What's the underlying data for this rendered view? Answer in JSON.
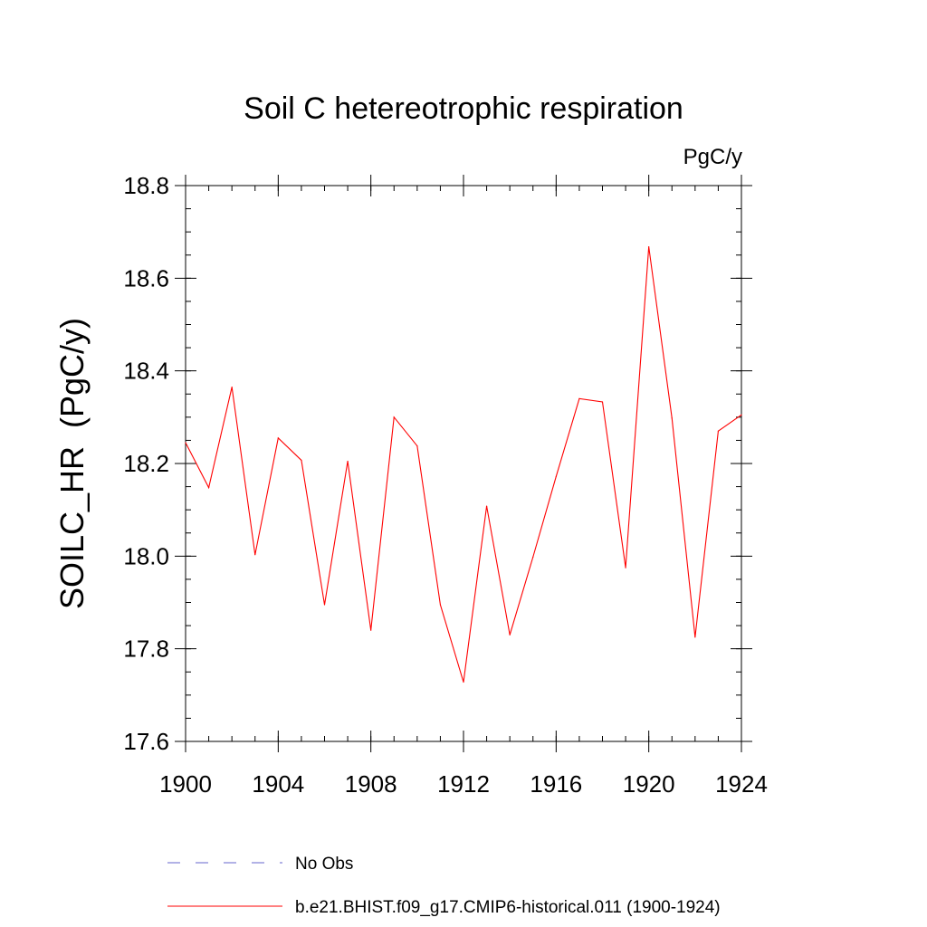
{
  "chart_data": {
    "type": "line",
    "title": "Soil C hetereotrophic respiration",
    "units_label": "PgC/y",
    "ylabel": "SOILC_HR  (PgC/y)",
    "xlabel": "",
    "xlim": [
      1900,
      1924
    ],
    "ylim": [
      17.6,
      18.8
    ],
    "x_ticks": [
      1900,
      1904,
      1908,
      1912,
      1916,
      1920,
      1924
    ],
    "y_ticks": [
      17.6,
      17.8,
      18.0,
      18.2,
      18.4,
      18.6,
      18.8
    ],
    "y_tick_labels": [
      "17.6",
      "17.8",
      "18.0",
      "18.2",
      "18.4",
      "18.6",
      "18.8"
    ],
    "grid": false,
    "legend_position": "bottom",
    "series": [
      {
        "name": "b.e21.BHIST.f09_g17.CMIP6-historical.011 (1900-1924)",
        "color": "#ff0000",
        "style": "solid",
        "x": [
          1900,
          1901,
          1902,
          1903,
          1904,
          1905,
          1906,
          1907,
          1908,
          1909,
          1910,
          1911,
          1912,
          1913,
          1914,
          1915,
          1916,
          1917,
          1918,
          1919,
          1920,
          1921,
          1922,
          1923,
          1924
        ],
        "values": [
          18.245,
          18.148,
          18.365,
          18.003,
          18.255,
          18.207,
          17.895,
          18.205,
          17.84,
          18.3,
          18.238,
          17.895,
          17.728,
          18.108,
          17.83,
          17.998,
          18.172,
          18.34,
          18.333,
          17.975,
          18.668,
          18.298,
          17.825,
          18.27,
          18.305
        ]
      }
    ],
    "legend": [
      {
        "label": "No Obs",
        "color": "#6666cc",
        "style": "dashed"
      },
      {
        "label": "b.e21.BHIST.f09_g17.CMIP6-historical.011 (1900-1924)",
        "color": "#ff0000",
        "style": "solid"
      }
    ]
  }
}
